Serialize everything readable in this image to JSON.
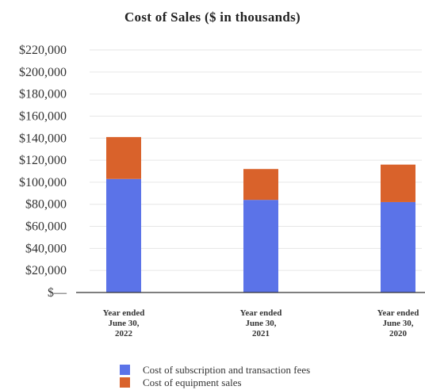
{
  "chart_data": {
    "type": "bar",
    "stacked": true,
    "title": "Cost of Sales ($ in thousands)",
    "categories": [
      [
        "Year ended",
        "June 30,",
        "2022"
      ],
      [
        "Year ended",
        "June 30,",
        "2021"
      ],
      [
        "Year ended",
        "June 30,",
        "2020"
      ]
    ],
    "series": [
      {
        "name": "Cost of subscription and transaction fees",
        "color": "#5b73e8",
        "values": [
          103000,
          84000,
          82000
        ]
      },
      {
        "name": "Cost of equipment sales",
        "color": "#d9622b",
        "values": [
          38000,
          28000,
          34000
        ]
      }
    ],
    "ylim": [
      0,
      220000
    ],
    "y_ticks": [
      {
        "value": 0,
        "label": "$—"
      },
      {
        "value": 20000,
        "label": "$20,000"
      },
      {
        "value": 40000,
        "label": "$40,000"
      },
      {
        "value": 60000,
        "label": "$60,000"
      },
      {
        "value": 80000,
        "label": "$80,000"
      },
      {
        "value": 100000,
        "label": "$100,000"
      },
      {
        "value": 120000,
        "label": "$120,000"
      },
      {
        "value": 140000,
        "label": "$140,000"
      },
      {
        "value": 160000,
        "label": "$160,000"
      },
      {
        "value": 180000,
        "label": "$180,000"
      },
      {
        "value": 200000,
        "label": "$200,000"
      },
      {
        "value": 220000,
        "label": "$220,000"
      }
    ],
    "grid": true,
    "legend_position": "bottom"
  }
}
